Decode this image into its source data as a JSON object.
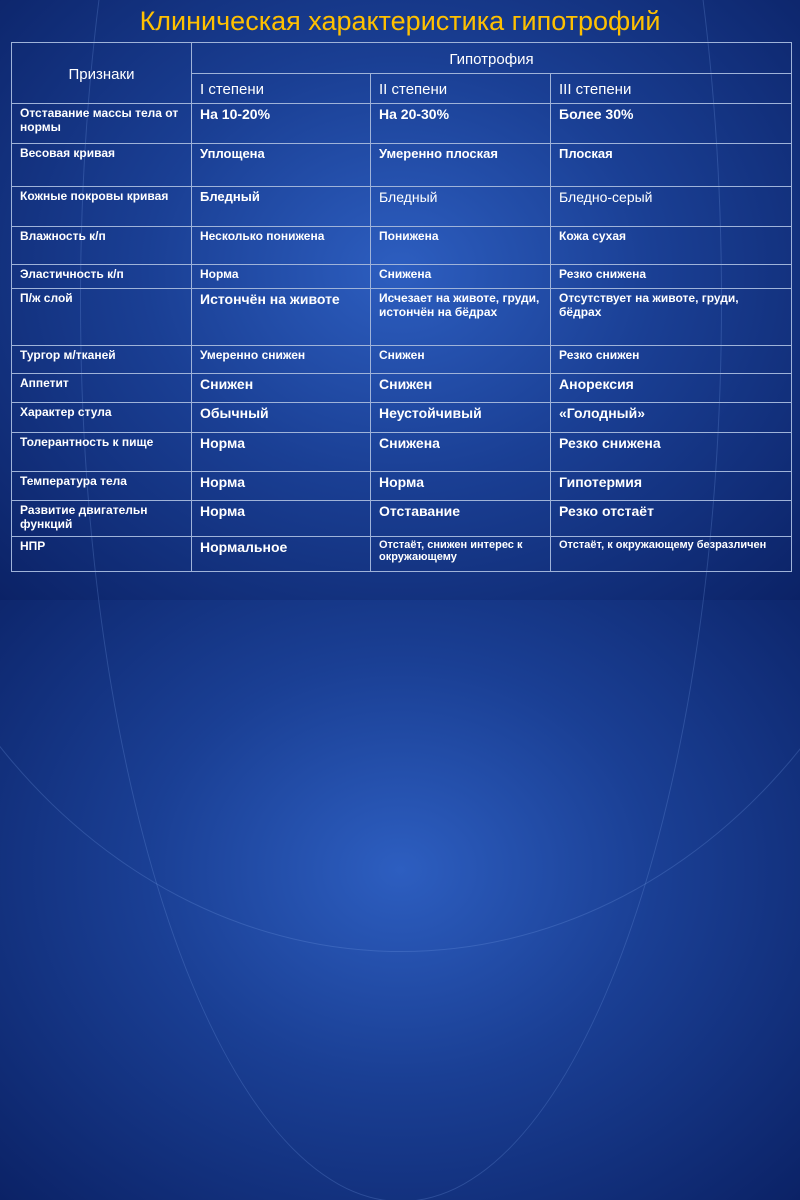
{
  "title": "Клиническая характеристика гипотрофий",
  "table": {
    "header_signs": "Признаки",
    "header_group": "Гипотрофия",
    "degrees": [
      "I степени",
      "II степени",
      "III степени"
    ],
    "rows": [
      {
        "sign": "Отставание массы тела от нормы",
        "c1": "На 10-20%",
        "c2": "На 20-30%",
        "c3": "Более 30%"
      },
      {
        "sign": "Весовая кривая",
        "c1": "Уплощена",
        "c2": "Умеренно плоская",
        "c3": "Плоская"
      },
      {
        "sign": "Кожные покровы кривая",
        "c1": "Бледный",
        "c2": "Бледный",
        "c3": "Бледно-серый"
      },
      {
        "sign": "Влажность к/п",
        "c1": "Несколько понижена",
        "c2": "Понижена",
        "c3": "Кожа сухая"
      },
      {
        "sign": "Эластичность к/п",
        "c1": "Норма",
        "c2": "Снижена",
        "c3": "Резко снижена"
      },
      {
        "sign": "П/ж слой",
        "c1": "Истончён на животе",
        "c2": "Исчезает на животе, груди, истончён на бёдрах",
        "c3": "Отсутствует на животе, груди, бёдрах"
      },
      {
        "sign": "Тургор м/тканей",
        "c1": "Умеренно снижен",
        "c2": "Снижен",
        "c3": "Резко снижен"
      },
      {
        "sign": "Аппетит",
        "c1": "Снижен",
        "c2": "Снижен",
        "c3": "Анорексия"
      },
      {
        "sign": "Характер стула",
        "c1": "Обычный",
        "c2": "Неустойчивый",
        "c3": "«Голодный»"
      },
      {
        "sign": "Толерантность к пище",
        "c1": "Норма",
        "c2": "Снижена",
        "c3": "Резко снижена"
      },
      {
        "sign": "Температура тела",
        "c1": "Норма",
        "c2": "Норма",
        "c3": "Гипотермия"
      },
      {
        "sign": "Развитие двигательн функций",
        "c1": "Норма",
        "c2": "Отставание",
        "c3": "Резко отстаёт"
      },
      {
        "sign": "НПР",
        "c1": "Нормальное",
        "c2": "Отстаёт, снижен интерес к окружающему",
        "c3": "Отстаёт, к окружающему безразличен"
      }
    ]
  }
}
